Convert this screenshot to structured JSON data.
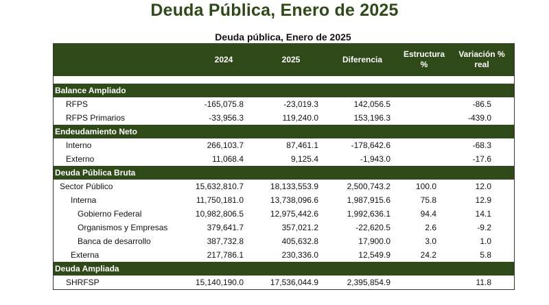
{
  "title": "Deuda Pública, Enero de 2025",
  "table_title": "Deuda pública, Enero de 2025",
  "headers": {
    "y2024": "2024",
    "y2025": "2025",
    "diferencia": "Diferencia",
    "estructura_1": "Estructura",
    "estructura_2": "%",
    "variacion_1": "Variación %",
    "variacion_2": "real"
  },
  "sections": [
    {
      "title": "Balance Ampliado",
      "rows": [
        {
          "label": "RFPS",
          "indent": 1,
          "y2024": "-165,075.8",
          "y2025": "-23,019.3",
          "dif": "142,056.5",
          "est": "",
          "var": "-86.5"
        },
        {
          "label": "RFPS Primarios",
          "indent": 1,
          "y2024": "-33,956.3",
          "y2025": "119,240.0",
          "dif": "153,196.3",
          "est": "",
          "var": "-439.0"
        }
      ]
    },
    {
      "title": "Endeudamiento Neto",
      "rows": [
        {
          "label": "Interno",
          "indent": 1,
          "y2024": "266,103.7",
          "y2025": "87,461.1",
          "dif": "-178,642.6",
          "est": "",
          "var": "-68.3"
        },
        {
          "label": "Externo",
          "indent": 1,
          "y2024": "11,068.4",
          "y2025": "9,125.4",
          "dif": "-1,943.0",
          "est": "",
          "var": "-17.6"
        }
      ]
    },
    {
      "title": "Deuda Pública Bruta",
      "rows": [
        {
          "label": "Sector Público",
          "indent": 2,
          "y2024": "15,632,810.7",
          "y2025": "18,133,553.9",
          "dif": "2,500,743.2",
          "est": "100.0",
          "var": "12.0"
        },
        {
          "label": "Interna",
          "indent": 3,
          "y2024": "11,750,181.0",
          "y2025": "13,738,096.6",
          "dif": "1,987,915.6",
          "est": "75.8",
          "var": "12.9"
        },
        {
          "label": "Gobierno Federal",
          "indent": 4,
          "y2024": "10,982,806.5",
          "y2025": "12,975,442.6",
          "dif": "1,992,636.1",
          "est": "94.4",
          "var": "14.1"
        },
        {
          "label": "Organismos y Empresas",
          "indent": 4,
          "y2024": "379,641.7",
          "y2025": "357,021.2",
          "dif": "-22,620.5",
          "est": "2.6",
          "var": "-9.2"
        },
        {
          "label": "Banca de desarrollo",
          "indent": 4,
          "y2024": "387,732.8",
          "y2025": "405,632.8",
          "dif": "17,900.0",
          "est": "3.0",
          "var": "1.0"
        },
        {
          "label": "Externa",
          "indent": 3,
          "y2024": "217,786.1",
          "y2025": "230,336.0",
          "dif": "12,549.9",
          "est": "24.2",
          "var": "5.8"
        }
      ]
    },
    {
      "title": "Deuda Ampliada",
      "rows": [
        {
          "label": "SHRFSP",
          "indent": 1,
          "y2024": "15,140,190.0",
          "y2025": "17,536,044.9",
          "dif": "2,395,854.9",
          "est": "",
          "var": "11.8"
        }
      ]
    }
  ]
}
